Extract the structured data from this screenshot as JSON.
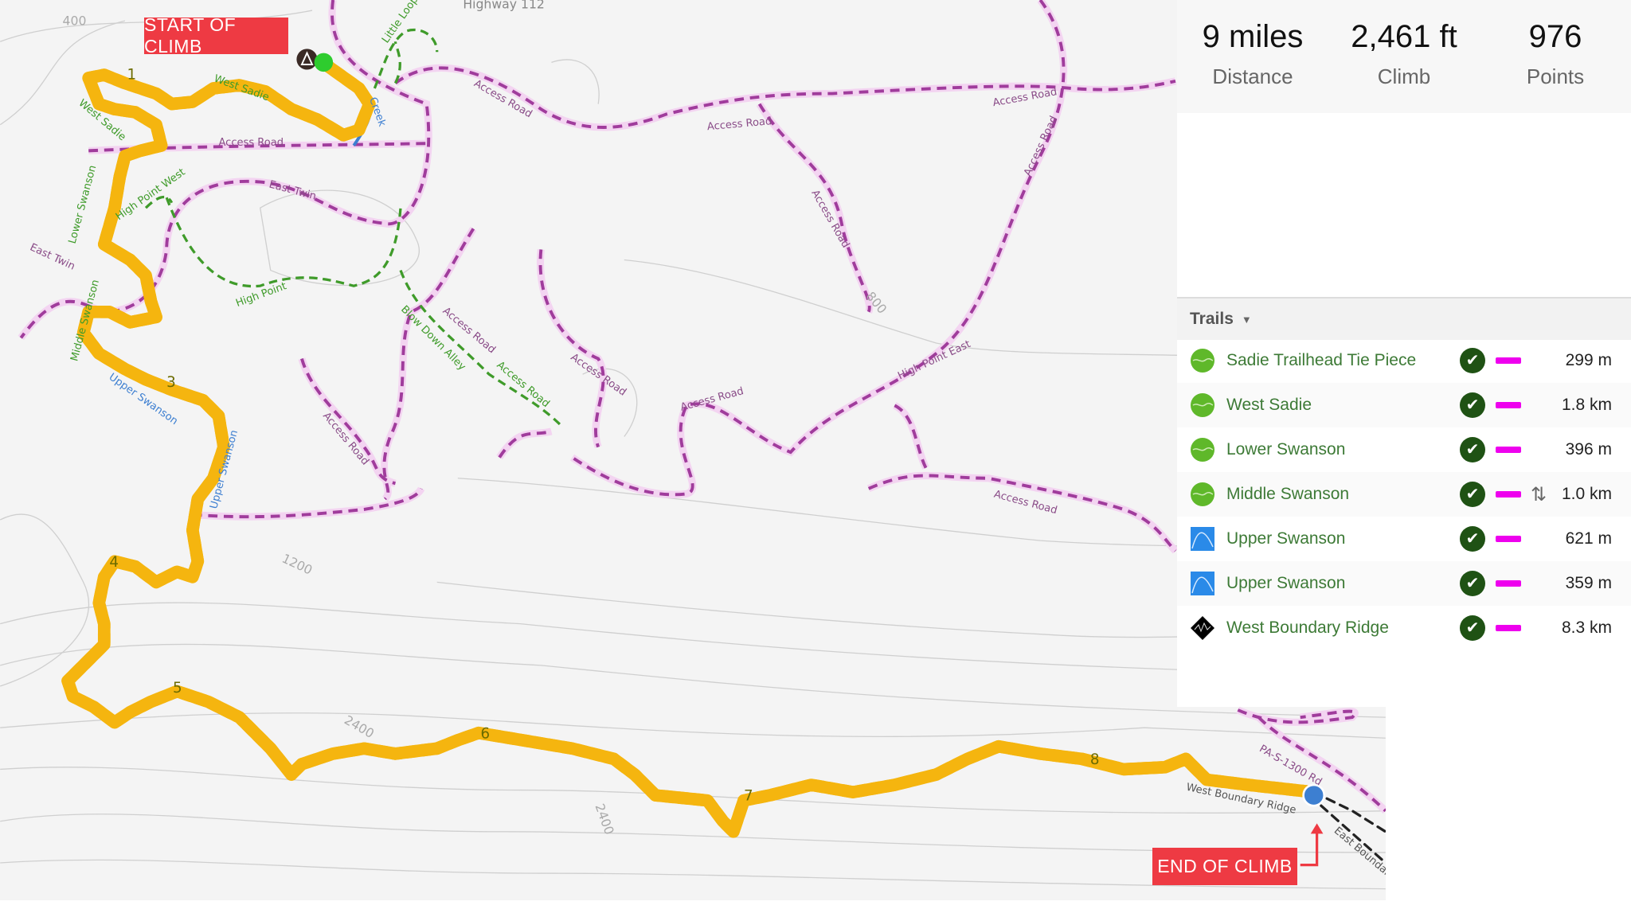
{
  "stats": [
    {
      "value": "9 miles",
      "label": "Distance"
    },
    {
      "value": "2,461 ft",
      "label": "Climb"
    },
    {
      "value": "976",
      "label": "Points"
    }
  ],
  "trails_header": "Trails",
  "trails": [
    {
      "name": "Sadie Trailhead Tie Piece",
      "difficulty": "green-circle",
      "length": "299 m",
      "direction": ""
    },
    {
      "name": "West Sadie",
      "difficulty": "green-circle",
      "length": "1.8 km",
      "direction": ""
    },
    {
      "name": "Lower Swanson",
      "difficulty": "green-circle",
      "length": "396 m",
      "direction": ""
    },
    {
      "name": "Middle Swanson",
      "difficulty": "green-circle",
      "length": "1.0 km",
      "direction": "⇅"
    },
    {
      "name": "Upper Swanson",
      "difficulty": "blue-square",
      "length": "621 m",
      "direction": ""
    },
    {
      "name": "Upper Swanson",
      "difficulty": "blue-square",
      "length": "359 m",
      "direction": ""
    },
    {
      "name": "West Boundary Ridge",
      "difficulty": "black-diamond",
      "length": "8.3 km",
      "direction": ""
    }
  ],
  "callouts": {
    "start": "START OF CLIMB",
    "end": "END OF CLIMB"
  },
  "map": {
    "labels": [
      "Highway 112",
      "Little Loop",
      "West Sadie",
      "West Sadie",
      "Access Road",
      "East Twin",
      "Lower Swanson",
      "High Point West",
      "High Point",
      "East Twin",
      "Middle Swanson",
      "Upper Swanson",
      "Upper Swanson",
      "Access Road",
      "Access Road",
      "Access Road",
      "Access Road",
      "Access Road",
      "Access Road",
      "Access Road",
      "Access Road",
      "Access Road",
      "High Point East",
      "Blow Down Alley",
      "Access Road",
      "Access Road",
      "West Boundary Ridge",
      "PA-S-1300 Rd",
      "East Boundary",
      "Creek"
    ],
    "contours": [
      "400",
      "800",
      "1200",
      "2400",
      "2400"
    ],
    "markers": [
      "1",
      "3",
      "4",
      "5",
      "6",
      "7",
      "8"
    ]
  },
  "colors": {
    "route": "#f5b50f",
    "road": "#a03c9c",
    "trail": "#3f9b2a",
    "callout": "#ee3a43",
    "start": "#2ecc2e",
    "end": "#3d7fd1",
    "length_bar": "#ee00ee",
    "check": "#1f5214"
  }
}
